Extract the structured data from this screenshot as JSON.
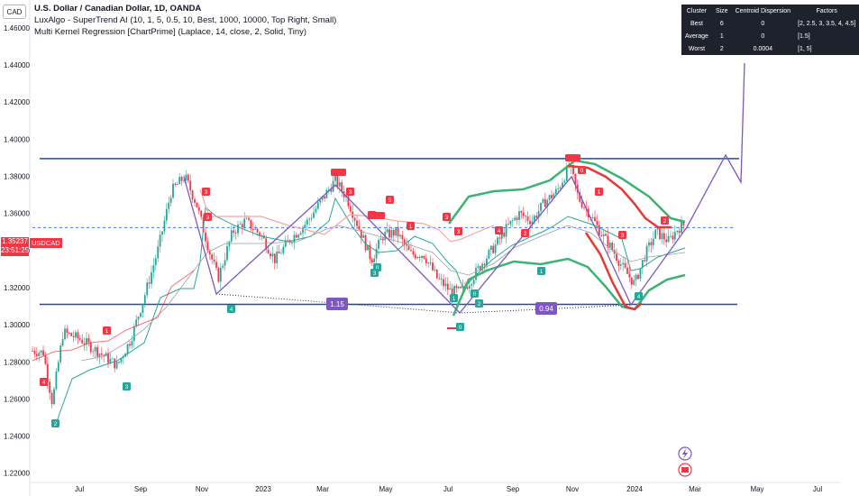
{
  "header": {
    "symbol_button": "CAD",
    "title": "U.S. Dollar / Canadian Dollar, 1D, OANDA",
    "indicator1": "LuxAlgo - SuperTrend AI (10, 1, 5, 0.5, 10, Best, 1000, 10000, Top Right, Small)",
    "indicator2": "Multi Kernel Regression [ChartPrime] (Laplace, 14, close, 2, Solid, Tiny)"
  },
  "cluster_table": {
    "headers": [
      "Cluster",
      "Size",
      "Centroid Dispersion",
      "Factors"
    ],
    "rows": [
      [
        "Best",
        "6",
        "0",
        "[2, 2.5, 3, 3.5, 4, 4.5]"
      ],
      [
        "Average",
        "1",
        "0",
        "[1.5]"
      ],
      [
        "Worst",
        "2",
        "0.0004",
        "[1, 5]"
      ]
    ]
  },
  "price_label": {
    "price": "1.35237",
    "countdown": "23:51:25",
    "symbol": "USDCAD"
  },
  "colors": {
    "bull": "#26a69a",
    "bear": "#f23645",
    "purple": "#7e57c2",
    "blue": "#2962ff",
    "line_blue": "#1848cc",
    "kernel_green": "#3cb371",
    "kernel_red": "#e53935"
  },
  "chart_data": {
    "type": "candlestick",
    "y_ticks": [
      "1.46000",
      "1.44000",
      "1.42000",
      "1.40000",
      "1.38000",
      "1.36000",
      "1.34000",
      "1.32000",
      "1.30000",
      "1.28000",
      "1.26000",
      "1.24000",
      "1.22000"
    ],
    "x_ticks": [
      "Jul",
      "Sep",
      "Nov",
      "2023",
      "Mar",
      "May",
      "Jul",
      "Sep",
      "Nov",
      "2024",
      "Mar",
      "May",
      "Jul"
    ],
    "ylim": [
      1.215,
      1.475
    ],
    "current_price": 1.35237,
    "resistance_level": 1.3895,
    "support_level": 1.311,
    "ranges": [
      {
        "label": "1.15"
      },
      {
        "label": "0.94"
      }
    ],
    "signals_bear": [
      "4",
      "1",
      "3",
      "3",
      "5",
      "3",
      "1",
      "2",
      "1",
      "3",
      "1",
      "4",
      "3",
      "3",
      "2",
      "0"
    ],
    "signals_bull": [
      "2",
      "3",
      "4",
      "0",
      "1",
      "2",
      "1",
      "4",
      "3",
      "0",
      "0"
    ]
  }
}
